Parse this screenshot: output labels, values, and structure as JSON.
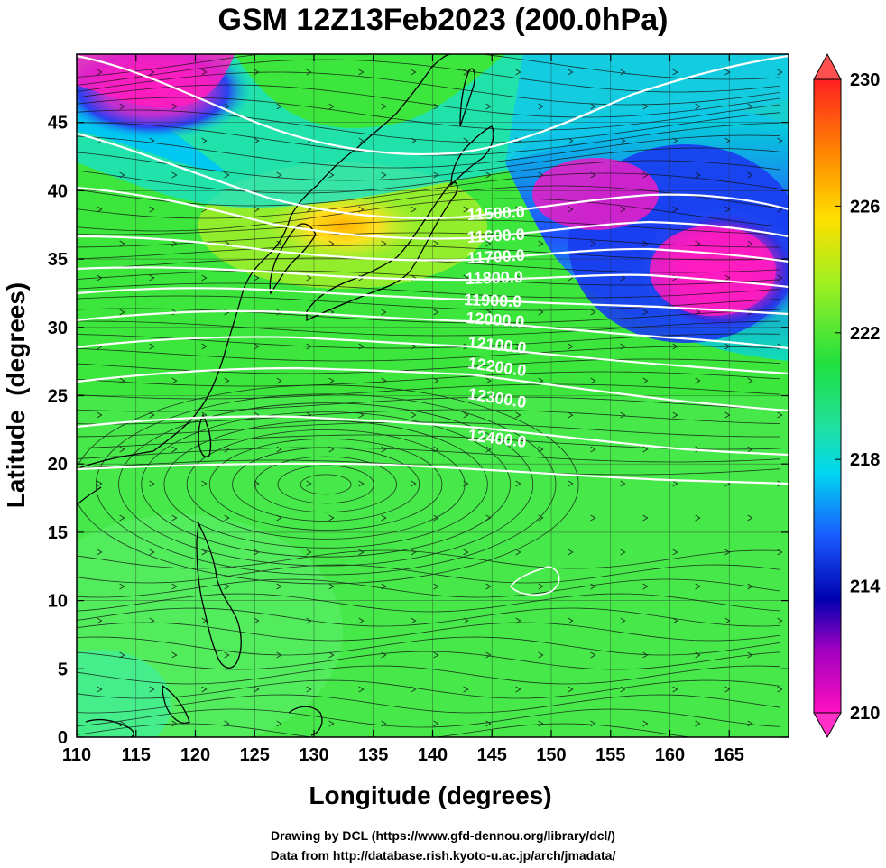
{
  "title": "GSM 12Z13Feb2023 (200.0hPa)",
  "x_axis": {
    "label": "Longitude (degrees)",
    "range": [
      110,
      170
    ],
    "ticks": [
      "110",
      "115",
      "120",
      "125",
      "130",
      "135",
      "140",
      "145",
      "150",
      "155",
      "160",
      "165"
    ]
  },
  "y_axis": {
    "label": "Latitude  (degrees)",
    "range": [
      0,
      50
    ],
    "ticks": [
      "0",
      "5",
      "10",
      "15",
      "20",
      "25",
      "30",
      "35",
      "40",
      "45"
    ]
  },
  "colorbar": {
    "range": [
      210,
      230
    ],
    "tick_labels": [
      "230",
      "226",
      "222",
      "218",
      "214",
      "210"
    ],
    "colors": [
      "#ff2a2a",
      "#ffb000",
      "#ffff30",
      "#30ff30",
      "#00e8f0",
      "#1a5cff",
      "#0000c0",
      "#a000c0",
      "#ff10c0"
    ]
  },
  "contour_labels": [
    "11500.0",
    "11600.0",
    "11700.0",
    "11800.0",
    "11900.0",
    "12000.0",
    "12100.0",
    "12200.0",
    "12300.0",
    "12400.0"
  ],
  "credits": {
    "line1": "Drawing by DCL (https://www.gfd-dennou.org/library/dcl/)",
    "line2": "Data from http://database.rish.kyoto-u.ac.jp/arch/jmadata/"
  }
}
